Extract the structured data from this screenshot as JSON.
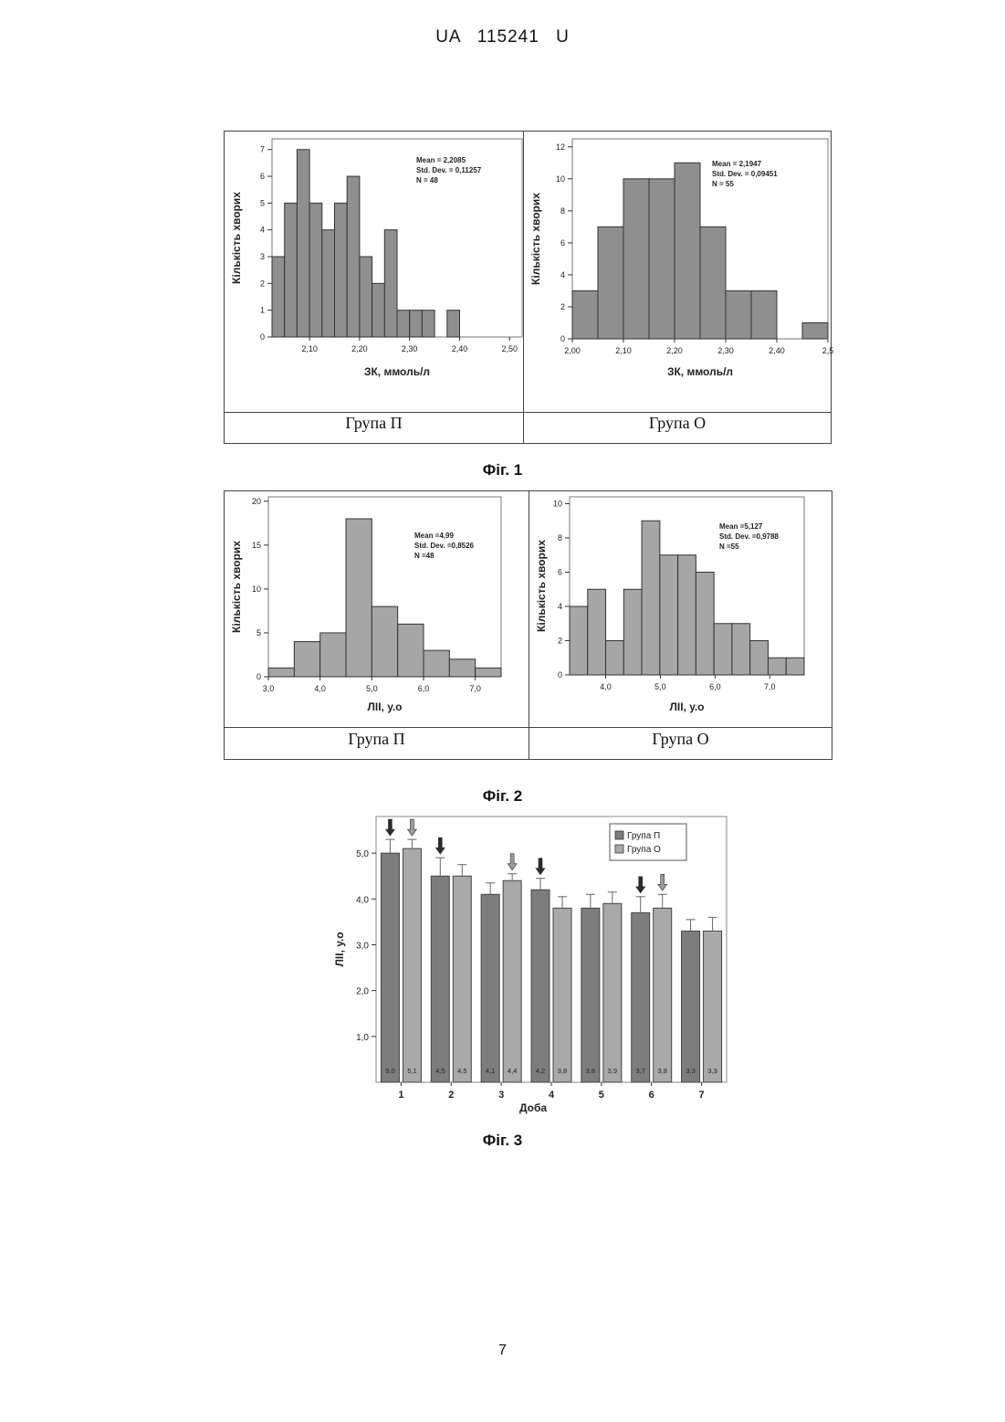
{
  "header": "UA 115241 U",
  "page_number": "7",
  "figures": [
    {
      "caption": "Фіг. 1",
      "group_labels": [
        "Група П",
        "Група О"
      ]
    },
    {
      "caption": "Фіг. 2",
      "group_labels": [
        "Група П",
        "Група О"
      ]
    },
    {
      "caption": "Фіг. 3"
    }
  ],
  "chart_data": [
    {
      "type": "bar",
      "panel": "Фіг. 1 — Група П",
      "xlabel": "ЗК, ммоль/л",
      "ylabel": "Кількість хворих",
      "bin_width": 0.025,
      "bin_starts": [
        2.025,
        2.05,
        2.075,
        2.1,
        2.125,
        2.15,
        2.175,
        2.2,
        2.225,
        2.25,
        2.275,
        2.3,
        2.325,
        2.35,
        2.375,
        2.4,
        2.425,
        2.45,
        2.475,
        2.5
      ],
      "values": [
        3,
        5,
        7,
        5,
        4,
        5,
        6,
        3,
        2,
        4,
        1,
        1,
        1,
        0,
        1
      ],
      "xlim": [
        2.025,
        2.525
      ],
      "ylim": [
        0,
        7.4
      ],
      "x_ticks": [
        2.1,
        2.2,
        2.3,
        2.4,
        2.5
      ],
      "x_tick_labels": [
        "2,10",
        "2,20",
        "2,30",
        "2,40",
        "2,50"
      ],
      "y_ticks": [
        0,
        1,
        2,
        3,
        4,
        5,
        6,
        7
      ],
      "y_tick_labels": [
        "0",
        "1",
        "2",
        "3",
        "4",
        "5",
        "6",
        "7"
      ],
      "stats": [
        "Mean = 2,2085",
        "Std. Dev. = 0,11257",
        "N = 48"
      ],
      "bar_color": "#8f8f8f"
    },
    {
      "type": "bar",
      "panel": "Фіг. 1 — Група О",
      "xlabel": "ЗК, ммоль/л",
      "ylabel": "Кількість хворих",
      "bin_width": 0.05,
      "bin_starts": [
        2.0,
        2.05,
        2.1,
        2.15,
        2.2,
        2.25,
        2.3,
        2.35,
        2.4,
        2.45
      ],
      "values": [
        3,
        7,
        10,
        10,
        11,
        7,
        3,
        3,
        0,
        1
      ],
      "xlim": [
        2.0,
        2.5
      ],
      "ylim": [
        0,
        12.5
      ],
      "x_ticks": [
        2.0,
        2.1,
        2.2,
        2.3,
        2.4,
        2.5
      ],
      "x_tick_labels": [
        "2,00",
        "2,10",
        "2,20",
        "2,30",
        "2,40",
        "2,5"
      ],
      "y_ticks": [
        0,
        2,
        4,
        6,
        8,
        10,
        12
      ],
      "y_tick_labels": [
        "0",
        "2",
        "4",
        "6",
        "8",
        "10",
        "12"
      ],
      "stats": [
        "Mean = 2,1947",
        "Std. Dev. = 0,09451",
        "N = 55"
      ],
      "bar_color": "#8f8f8f"
    },
    {
      "type": "bar",
      "panel": "Фіг. 2 — Група П",
      "xlabel": "ЛІІ, у.о",
      "ylabel": "Кількість хворих",
      "bin_width": 0.5,
      "bin_starts": [
        3.0,
        3.5,
        4.0,
        4.5,
        5.0,
        5.5,
        6.0,
        6.5,
        7.0
      ],
      "values": [
        1,
        4,
        5,
        18,
        8,
        6,
        3,
        2,
        1
      ],
      "xlim": [
        3.0,
        7.5
      ],
      "ylim": [
        0,
        20.5
      ],
      "x_ticks": [
        3.0,
        4.0,
        5.0,
        6.0,
        7.0
      ],
      "x_tick_labels": [
        "3,0",
        "4,0",
        "5,0",
        "6,0",
        "7,0"
      ],
      "y_ticks": [
        0,
        5,
        10,
        15,
        20
      ],
      "y_tick_labels": [
        "0",
        "5",
        "10",
        "15",
        "20"
      ],
      "stats": [
        "Mean =4,99",
        "Std. Dev. =0,8526",
        "N =48"
      ],
      "bar_color": "#a6a6a6"
    },
    {
      "type": "bar",
      "panel": "Фіг. 2 — Група О",
      "xlabel": "ЛІІ, у.о",
      "ylabel": "Кількість хворих",
      "bin_width": 0.33,
      "bin_starts": [
        3.34,
        3.67,
        4.0,
        4.33,
        4.66,
        4.99,
        5.32,
        5.65,
        5.98,
        6.31,
        6.64,
        6.97,
        7.3
      ],
      "values": [
        4,
        5,
        2,
        5,
        9,
        7,
        7,
        6,
        3,
        3,
        2,
        1,
        1
      ],
      "xlim": [
        3.34,
        7.63
      ],
      "ylim": [
        0,
        10.4
      ],
      "x_ticks": [
        4.0,
        5.0,
        6.0,
        7.0
      ],
      "x_tick_labels": [
        "4,0",
        "5,0",
        "6,0",
        "7,0"
      ],
      "y_ticks": [
        0,
        2,
        4,
        6,
        8,
        10
      ],
      "y_tick_labels": [
        "0",
        "2",
        "4",
        "6",
        "8",
        "10"
      ],
      "stats": [
        "Mean =5,127",
        "Std. Dev. =0,9788",
        "N =55"
      ],
      "bar_color": "#a6a6a6"
    },
    {
      "type": "bar",
      "panel": "Фіг. 3",
      "xlabel": "Доба",
      "ylabel": "ЛІІ, у.о",
      "categories": [
        "1",
        "2",
        "3",
        "4",
        "5",
        "6",
        "7"
      ],
      "series": [
        {
          "name": "Група П",
          "values": [
            5.0,
            4.5,
            4.1,
            4.2,
            3.8,
            3.7,
            3.3
          ],
          "value_labels": [
            "5,0",
            "4,5",
            "4,1",
            "4,2",
            "3,8",
            "3,7",
            "3,3"
          ],
          "errors": [
            0.3,
            0.4,
            0.25,
            0.25,
            0.3,
            0.35,
            0.25
          ],
          "color": "#7d7d7d"
        },
        {
          "name": "Група О",
          "values": [
            5.1,
            4.5,
            4.4,
            3.8,
            3.9,
            3.8,
            3.3
          ],
          "value_labels": [
            "5,1",
            "4,5",
            "4,4",
            "3,8",
            "3,9",
            "3,8",
            "3,3"
          ],
          "errors": [
            0.2,
            0.25,
            0.15,
            0.25,
            0.25,
            0.3,
            0.3
          ],
          "color": "#a9a9a9"
        }
      ],
      "ylim": [
        0,
        5.8
      ],
      "y_ticks": [
        1.0,
        2.0,
        3.0,
        4.0,
        5.0
      ],
      "y_tick_labels": [
        "1,0",
        "2,0",
        "3,0",
        "4,0",
        "5,0"
      ],
      "legend_position": "top-right",
      "arrows": [
        {
          "category": 0,
          "series": 0
        },
        {
          "category": 0,
          "series": 1
        },
        {
          "category": 1,
          "series": 0
        },
        {
          "category": 2,
          "series": 1
        },
        {
          "category": 3,
          "series": 0
        },
        {
          "category": 5,
          "series": 0
        },
        {
          "category": 5,
          "series": 1
        }
      ]
    }
  ]
}
